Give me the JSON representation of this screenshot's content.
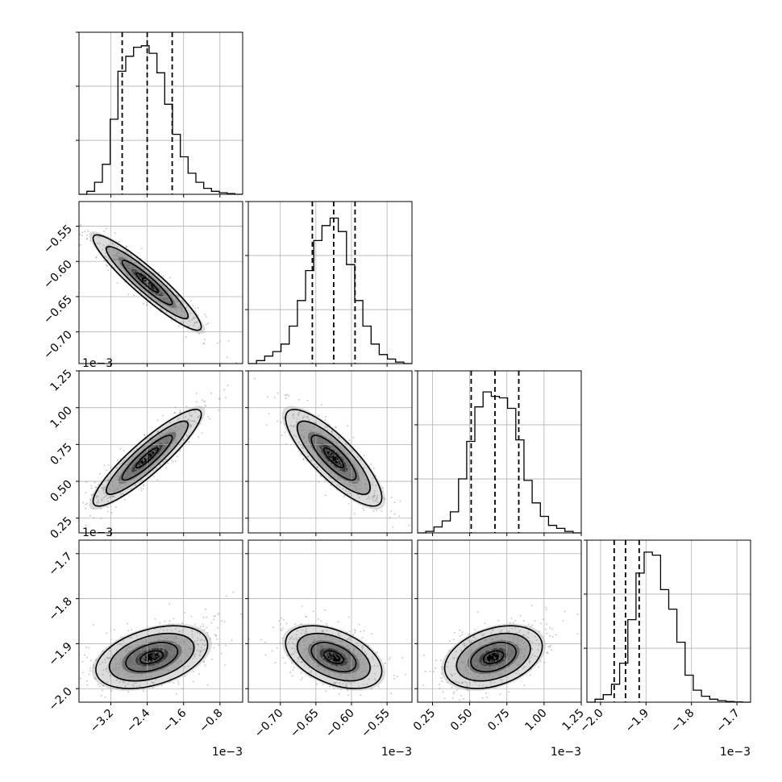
{
  "colors": {
    "frame": "#000000",
    "grid": "#b0b0b0",
    "scatter": "#8c8c8c",
    "contour": "#000000",
    "density_ramp": [
      "#ffffff",
      "#dcdcdc",
      "#a8a8a8",
      "#707070",
      "#3a3a3a",
      "#000000"
    ]
  },
  "chart_data": {
    "type": "corner",
    "grid": true,
    "quantile_lines": "dashed",
    "parameters": [
      {
        "range": [
          -3.9,
          -0.3
        ],
        "median": -2.4,
        "quantiles": [
          -2.95,
          -2.4,
          -1.85
        ],
        "ticks": [
          -3.2,
          -2.4,
          -1.6,
          -0.8
        ],
        "tick_labels": [
          "−3.2",
          "−2.4",
          "−1.6",
          "−0.8"
        ],
        "exponent_label": "1e−3",
        "hist": [
          0.02,
          0.08,
          0.2,
          0.5,
          0.82,
          0.92,
          0.98,
          0.99,
          0.94,
          0.81,
          0.6,
          0.4,
          0.25,
          0.14,
          0.08,
          0.04,
          0.02,
          0.01,
          0.005
        ]
      },
      {
        "range": [
          -0.745,
          -0.515
        ],
        "median": -0.625,
        "quantiles": [
          -0.655,
          -0.625,
          -0.595
        ],
        "ticks": [
          -0.7,
          -0.65,
          -0.6,
          -0.55
        ],
        "tick_labels": [
          "−0.70",
          "−0.65",
          "−0.60",
          "−0.55"
        ],
        "exponent_label": "1e−3",
        "hist": [
          0.02,
          0.05,
          0.08,
          0.13,
          0.25,
          0.42,
          0.62,
          0.82,
          0.92,
          0.97,
          0.88,
          0.66,
          0.42,
          0.25,
          0.13,
          0.06,
          0.03,
          0.01
        ]
      },
      {
        "range": [
          0.15,
          1.25
        ],
        "median": 0.67,
        "quantiles": [
          0.51,
          0.67,
          0.83
        ],
        "ticks": [
          0.25,
          0.5,
          0.75,
          1.0,
          1.25
        ],
        "tick_labels": [
          "0.25",
          "0.50",
          "0.75",
          "1.00",
          "1.25"
        ],
        "exponent_label": "1e−3",
        "hist": [
          0.01,
          0.04,
          0.08,
          0.14,
          0.36,
          0.61,
          0.84,
          0.94,
          0.91,
          0.9,
          0.83,
          0.62,
          0.35,
          0.2,
          0.11,
          0.05,
          0.03,
          0.01
        ]
      },
      {
        "range": [
          -2.03,
          -1.67
        ],
        "median": -1.945,
        "quantiles": [
          -1.97,
          -1.945,
          -1.915
        ],
        "ticks": [
          -2.0,
          -1.9,
          -1.8,
          -1.7
        ],
        "tick_labels": [
          "−2.0",
          "−1.9",
          "−1.8",
          "−1.7"
        ],
        "exponent_label": "1e−3",
        "hist": [
          0.02,
          0.05,
          0.12,
          0.26,
          0.55,
          0.86,
          1.0,
          0.98,
          0.75,
          0.62,
          0.4,
          0.18,
          0.08,
          0.04,
          0.02,
          0.01,
          0.005,
          0.002
        ]
      }
    ],
    "pairs": [
      {
        "x": 0,
        "y": 1,
        "center": [
          -2.4,
          -0.63
        ],
        "sx": 0.58,
        "sy": 0.033,
        "rho": -0.93
      },
      {
        "x": 0,
        "y": 2,
        "center": [
          -2.4,
          0.66
        ],
        "sx": 0.58,
        "sy": 0.16,
        "rho": 0.9
      },
      {
        "x": 1,
        "y": 2,
        "center": [
          -0.625,
          0.66
        ],
        "sx": 0.033,
        "sy": 0.16,
        "rho": -0.82
      },
      {
        "x": 0,
        "y": 3,
        "center": [
          -2.3,
          -1.93
        ],
        "sx": 0.6,
        "sy": 0.034,
        "rho": 0.4,
        "skew": "upper-right tail"
      },
      {
        "x": 1,
        "y": 3,
        "center": [
          -0.625,
          -1.93
        ],
        "sx": 0.033,
        "sy": 0.034,
        "rho": -0.45,
        "skew": "upper-left tail"
      },
      {
        "x": 2,
        "y": 3,
        "center": [
          0.66,
          -1.93
        ],
        "sx": 0.16,
        "sy": 0.034,
        "rho": 0.35,
        "skew": "upper-right tail"
      }
    ]
  }
}
